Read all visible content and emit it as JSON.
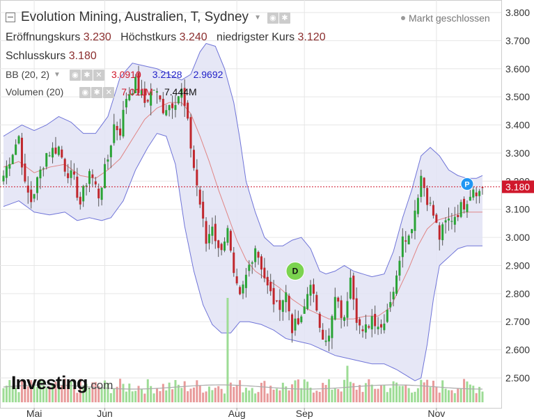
{
  "header": {
    "title": "Evolution Mining, Australien, T, Sydney",
    "market_status": "Markt geschlossen",
    "open_label": "Eröffnungskurs",
    "open_value": "3.230",
    "high_label": "Höchstkurs",
    "high_value": "3.240",
    "low_label": "niedrigster Kurs",
    "low_value": "3.120",
    "close_label": "Schlusskurs",
    "close_value": "3.180"
  },
  "indicators": {
    "bb_label": "BB (20, 2)",
    "bb_mid": "3.0910",
    "bb_upper": "3.2128",
    "bb_lower": "2.9692",
    "vol_label": "Volumen (20)",
    "vol_avg": "7.011M",
    "vol_value": "7.444M"
  },
  "logo": {
    "main": "Investing",
    "suffix": ".com"
  },
  "colors": {
    "up": "#2aa336",
    "down": "#c0272d",
    "band_fill": "#e2e3f4",
    "band_line": "#6f74d8",
    "mid_line": "#e08585",
    "vol_up": "#9ddc95",
    "vol_down": "#e89a9a",
    "price_line": "#d0182c"
  },
  "chart_data": {
    "type": "candlestick",
    "y_ticks": [
      "3.800",
      "3.700",
      "3.600",
      "3.500",
      "3.400",
      "3.300",
      "3.200",
      "3.100",
      "3.000",
      "2.900",
      "2.800",
      "2.700",
      "2.600",
      "2.500"
    ],
    "ylim": [
      2.42,
      3.82
    ],
    "x_labels": [
      {
        "label": "Mai",
        "index": 10
      },
      {
        "label": "Jun",
        "index": 33
      },
      {
        "label": "Aug",
        "index": 76
      },
      {
        "label": "Sep",
        "index": 98
      },
      {
        "label": "Nov",
        "index": 141
      }
    ],
    "current_price": 3.18,
    "current_price_label": "3.180",
    "markers": [
      {
        "label": "D",
        "index": 95,
        "price": 2.88
      },
      {
        "label": "P",
        "index": 151,
        "price": 3.19
      }
    ],
    "close_anchors": [
      [
        0,
        3.22
      ],
      [
        2,
        3.28
      ],
      [
        5,
        3.36
      ],
      [
        7,
        3.18
      ],
      [
        9,
        3.13
      ],
      [
        11,
        3.2
      ],
      [
        14,
        3.3
      ],
      [
        18,
        3.32
      ],
      [
        20,
        3.25
      ],
      [
        23,
        3.2
      ],
      [
        25,
        3.12
      ],
      [
        28,
        3.24
      ],
      [
        31,
        3.15
      ],
      [
        34,
        3.28
      ],
      [
        36,
        3.4
      ],
      [
        38,
        3.38
      ],
      [
        40,
        3.5
      ],
      [
        43,
        3.55
      ],
      [
        46,
        3.48
      ],
      [
        49,
        3.53
      ],
      [
        52,
        3.46
      ],
      [
        55,
        3.48
      ],
      [
        58,
        3.52
      ],
      [
        60,
        3.4
      ],
      [
        62,
        3.25
      ],
      [
        64,
        3.12
      ],
      [
        66,
        2.98
      ],
      [
        68,
        3.05
      ],
      [
        70,
        2.95
      ],
      [
        73,
        3.02
      ],
      [
        75,
        2.85
      ],
      [
        77,
        2.78
      ],
      [
        80,
        2.9
      ],
      [
        82,
        2.97
      ],
      [
        84,
        2.9
      ],
      [
        86,
        2.82
      ],
      [
        89,
        2.75
      ],
      [
        92,
        2.8
      ],
      [
        94,
        2.68
      ],
      [
        97,
        2.7
      ],
      [
        100,
        2.85
      ],
      [
        102,
        2.72
      ],
      [
        104,
        2.66
      ],
      [
        106,
        2.64
      ],
      [
        108,
        2.78
      ],
      [
        111,
        2.7
      ],
      [
        113,
        2.88
      ],
      [
        115,
        2.72
      ],
      [
        117,
        2.65
      ],
      [
        120,
        2.72
      ],
      [
        123,
        2.68
      ],
      [
        125,
        2.75
      ],
      [
        128,
        2.85
      ],
      [
        130,
        3.02
      ],
      [
        132,
        3.0
      ],
      [
        134,
        3.1
      ],
      [
        136,
        3.22
      ],
      [
        138,
        3.14
      ],
      [
        140,
        3.08
      ],
      [
        142,
        3.0
      ],
      [
        144,
        3.05
      ],
      [
        147,
        3.08
      ],
      [
        150,
        3.12
      ],
      [
        153,
        3.18
      ],
      [
        155,
        3.16
      ],
      [
        156,
        3.18
      ]
    ],
    "bollinger": {
      "upper": [
        [
          0,
          3.36
        ],
        [
          6,
          3.4
        ],
        [
          10,
          3.38
        ],
        [
          14,
          3.4
        ],
        [
          18,
          3.43
        ],
        [
          22,
          3.41
        ],
        [
          26,
          3.37
        ],
        [
          30,
          3.37
        ],
        [
          34,
          3.43
        ],
        [
          38,
          3.57
        ],
        [
          42,
          3.62
        ],
        [
          46,
          3.61
        ],
        [
          50,
          3.6
        ],
        [
          54,
          3.58
        ],
        [
          58,
          3.56
        ],
        [
          61,
          3.58
        ],
        [
          64,
          3.66
        ],
        [
          66,
          3.69
        ],
        [
          69,
          3.68
        ],
        [
          72,
          3.6
        ],
        [
          75,
          3.48
        ],
        [
          77,
          3.35
        ],
        [
          79,
          3.2
        ],
        [
          82,
          3.09
        ],
        [
          85,
          3.0
        ],
        [
          88,
          2.97
        ],
        [
          91,
          2.97
        ],
        [
          94,
          2.99
        ],
        [
          97,
          3.0
        ],
        [
          100,
          2.96
        ],
        [
          103,
          2.88
        ],
        [
          105,
          2.87
        ],
        [
          108,
          2.88
        ],
        [
          111,
          2.9
        ],
        [
          114,
          2.88
        ],
        [
          117,
          2.87
        ],
        [
          120,
          2.86
        ],
        [
          124,
          2.87
        ],
        [
          127,
          2.95
        ],
        [
          130,
          3.07
        ],
        [
          133,
          3.17
        ],
        [
          136,
          3.29
        ],
        [
          139,
          3.32
        ],
        [
          142,
          3.29
        ],
        [
          145,
          3.24
        ],
        [
          148,
          3.22
        ],
        [
          151,
          3.21
        ],
        [
          154,
          3.21
        ],
        [
          156,
          3.22
        ]
      ],
      "mid": [
        [
          0,
          3.25
        ],
        [
          5,
          3.27
        ],
        [
          10,
          3.23
        ],
        [
          15,
          3.25
        ],
        [
          20,
          3.26
        ],
        [
          25,
          3.22
        ],
        [
          30,
          3.21
        ],
        [
          34,
          3.24
        ],
        [
          38,
          3.28
        ],
        [
          42,
          3.35
        ],
        [
          46,
          3.42
        ],
        [
          50,
          3.46
        ],
        [
          54,
          3.48
        ],
        [
          58,
          3.48
        ],
        [
          61,
          3.44
        ],
        [
          64,
          3.36
        ],
        [
          67,
          3.27
        ],
        [
          70,
          3.17
        ],
        [
          73,
          3.08
        ],
        [
          76,
          2.99
        ],
        [
          79,
          2.92
        ],
        [
          82,
          2.88
        ],
        [
          86,
          2.85
        ],
        [
          90,
          2.82
        ],
        [
          94,
          2.78
        ],
        [
          98,
          2.75
        ],
        [
          102,
          2.73
        ],
        [
          106,
          2.71
        ],
        [
          110,
          2.71
        ],
        [
          114,
          2.71
        ],
        [
          118,
          2.72
        ],
        [
          122,
          2.72
        ],
        [
          126,
          2.75
        ],
        [
          129,
          2.82
        ],
        [
          132,
          2.89
        ],
        [
          135,
          2.97
        ],
        [
          138,
          3.03
        ],
        [
          141,
          3.06
        ],
        [
          144,
          3.07
        ],
        [
          147,
          3.08
        ],
        [
          150,
          3.09
        ],
        [
          153,
          3.09
        ],
        [
          156,
          3.09
        ]
      ],
      "lower": [
        [
          0,
          3.11
        ],
        [
          5,
          3.13
        ],
        [
          10,
          3.09
        ],
        [
          15,
          3.08
        ],
        [
          20,
          3.09
        ],
        [
          24,
          3.06
        ],
        [
          28,
          3.07
        ],
        [
          32,
          3.06
        ],
        [
          35,
          3.07
        ],
        [
          39,
          3.13
        ],
        [
          43,
          3.24
        ],
        [
          47,
          3.32
        ],
        [
          50,
          3.37
        ],
        [
          53,
          3.36
        ],
        [
          56,
          3.26
        ],
        [
          59,
          3.04
        ],
        [
          62,
          2.88
        ],
        [
          65,
          2.76
        ],
        [
          68,
          2.69
        ],
        [
          71,
          2.66
        ],
        [
          74,
          2.66
        ],
        [
          77,
          2.7
        ],
        [
          80,
          2.7
        ],
        [
          84,
          2.69
        ],
        [
          88,
          2.67
        ],
        [
          92,
          2.64
        ],
        [
          96,
          2.63
        ],
        [
          100,
          2.62
        ],
        [
          104,
          2.6
        ],
        [
          108,
          2.58
        ],
        [
          112,
          2.57
        ],
        [
          116,
          2.56
        ],
        [
          120,
          2.55
        ],
        [
          124,
          2.55
        ],
        [
          128,
          2.53
        ],
        [
          131,
          2.51
        ],
        [
          134,
          2.49
        ],
        [
          136,
          2.5
        ],
        [
          138,
          2.62
        ],
        [
          140,
          2.78
        ],
        [
          142,
          2.9
        ],
        [
          145,
          2.93
        ],
        [
          148,
          2.96
        ],
        [
          151,
          2.97
        ],
        [
          154,
          2.97
        ],
        [
          156,
          2.97
        ]
      ]
    },
    "volume_spikes": [
      {
        "index": 73,
        "level": 1.0
      },
      {
        "index": 112,
        "level": 0.35
      }
    ]
  }
}
